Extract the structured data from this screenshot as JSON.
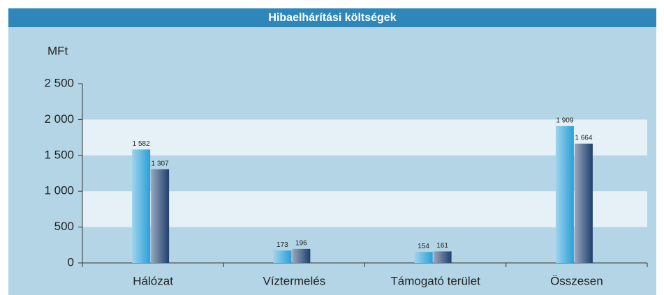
{
  "chart_data": {
    "type": "bar",
    "title": "Hibaelhárítási költségek",
    "y_label": "MFt",
    "categories": [
      "Hálózat",
      "Víztermelés",
      "Támogató terület",
      "Összesen"
    ],
    "series": [
      {
        "color": "#2a9fd8",
        "values": [
          1582,
          173,
          154,
          1909
        ],
        "value_labels": [
          "1 582",
          "173",
          "154",
          "1 909"
        ]
      },
      {
        "color": "#1f3f6e",
        "values": [
          1307,
          196,
          161,
          1664
        ],
        "value_labels": [
          "1 307",
          "196",
          "161",
          "1 664"
        ]
      }
    ],
    "ylim": [
      0,
      2500
    ],
    "yticks": [
      0,
      500,
      {
        "value": 1000,
        "label": "1 000"
      },
      {
        "value": 1500,
        "label": "1 500"
      },
      {
        "value": 2000,
        "label": "2 000"
      },
      {
        "value": 2500,
        "label": "2 500"
      }
    ],
    "grid_bands": true
  }
}
